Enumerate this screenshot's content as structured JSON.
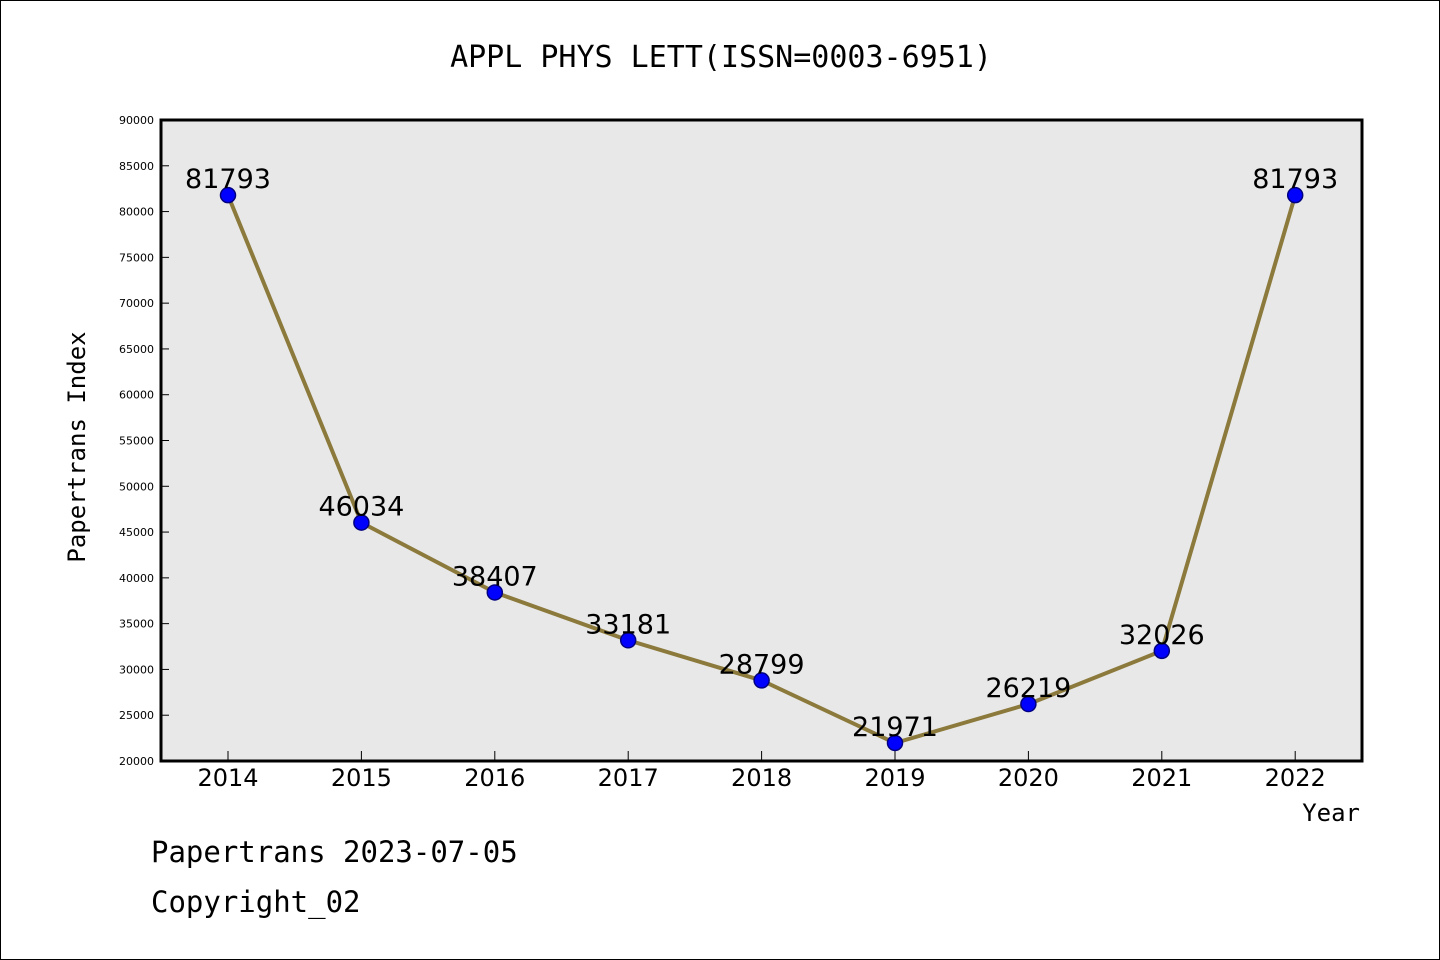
{
  "chart_data": {
    "type": "line",
    "title": "APPL PHYS LETT(ISSN=0003-6951)",
    "xlabel": "Year",
    "ylabel": "Papertrans Index",
    "categories": [
      "2014",
      "2015",
      "2016",
      "2017",
      "2018",
      "2019",
      "2020",
      "2021",
      "2022"
    ],
    "values": [
      81793,
      46034,
      38407,
      33181,
      28799,
      21971,
      26219,
      32026,
      81793
    ],
    "data_labels": [
      "81793",
      "46034",
      "38407",
      "33181",
      "28799",
      "21971",
      "26219",
      "32026",
      "81793"
    ],
    "ylim": [
      20000,
      90000
    ],
    "yticks": [
      "20000",
      "25000",
      "30000",
      "35000",
      "40000",
      "45000",
      "50000",
      "55000",
      "60000",
      "65000",
      "70000",
      "75000",
      "80000",
      "85000",
      "90000"
    ],
    "grid": false,
    "legend": "none",
    "colors": {
      "plot_background": "#e8e8e8",
      "line": "#8c7a3c",
      "marker": "#0000ff",
      "marker_edge": "#000080"
    }
  },
  "footer": {
    "source": "Papertrans 2023-07-05",
    "copyright": "Copyright_02"
  }
}
